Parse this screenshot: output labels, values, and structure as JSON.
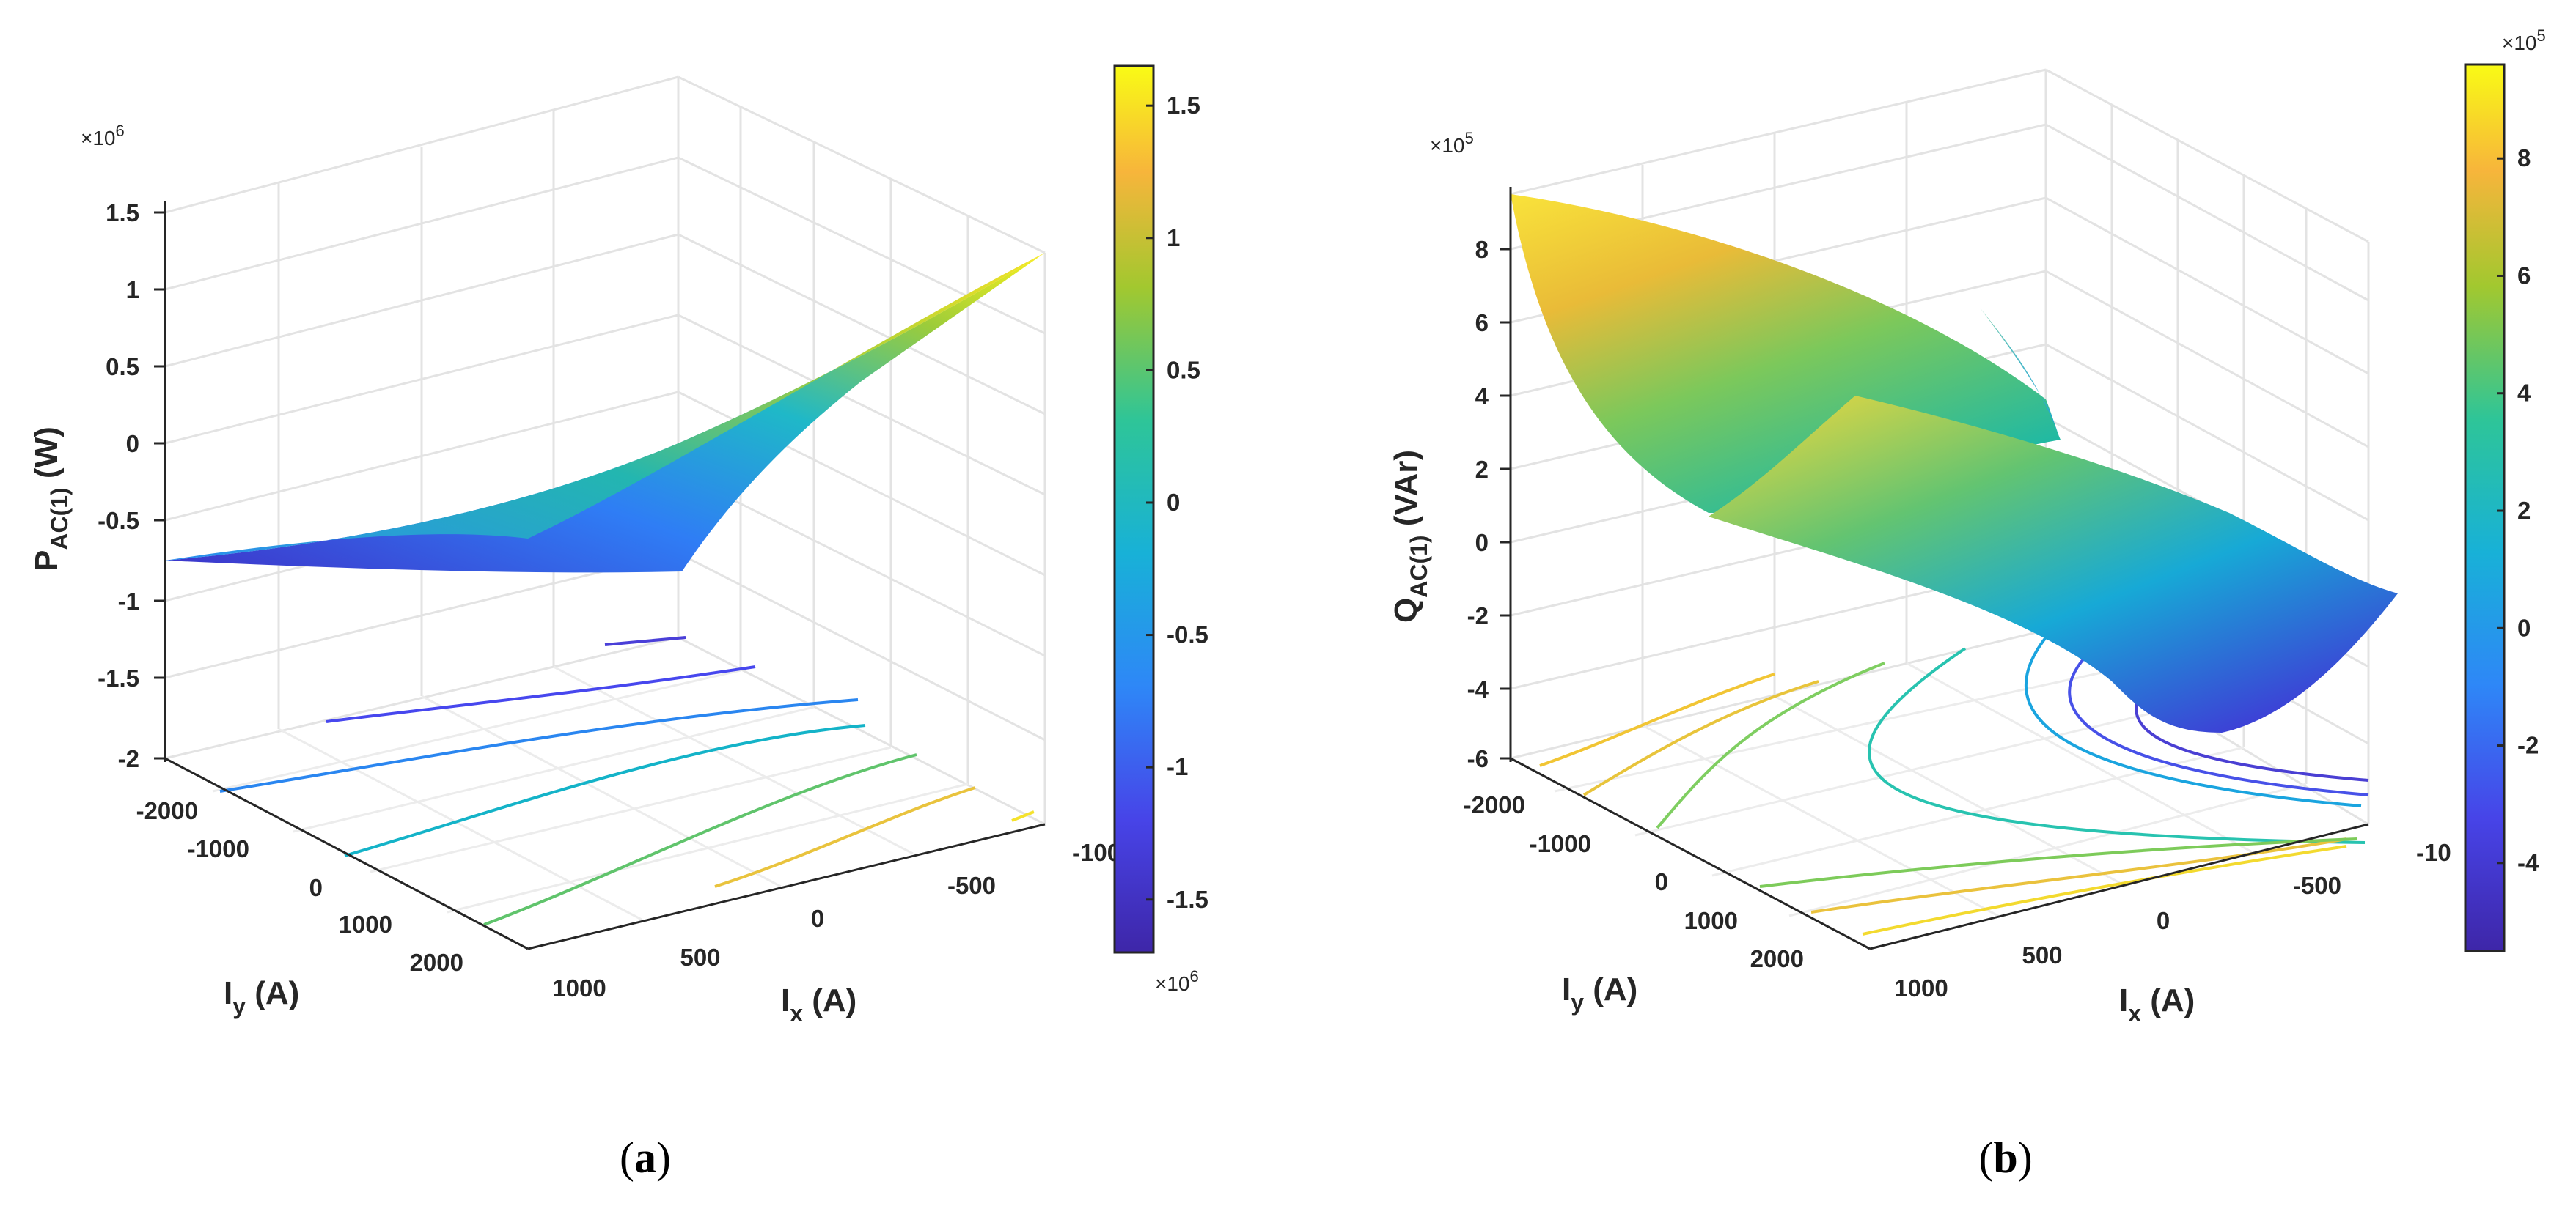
{
  "chart_data": [
    {
      "id": "a",
      "type": "surface3d",
      "caption_letter": "a",
      "zlabel_main": "P",
      "zlabel_sub": "AC(1)",
      "zlabel_unit": " (W)",
      "xlabel_main": "I",
      "xlabel_sub": "x",
      "xlabel_unit": " (A)",
      "ylabel_main": "I",
      "ylabel_sub": "y",
      "ylabel_unit": " (A)",
      "z_exponent_base": "×10",
      "z_exponent_power": "6",
      "z_ticks": [
        "1.5",
        "1",
        "0.5",
        "0",
        "-0.5",
        "-1",
        "-1.5",
        "-2"
      ],
      "z_tick_values": [
        1.5,
        1,
        0.5,
        0,
        -0.5,
        -1,
        -1.5,
        -2
      ],
      "x_ticks": [
        "1000",
        "500",
        "0",
        "-500",
        "-100"
      ],
      "y_ticks": [
        "-2000",
        "-1000",
        "0",
        "1000",
        "2000"
      ],
      "colorbar": {
        "ticks": [
          "1.5",
          "1",
          "0.5",
          "0",
          "-0.5",
          "-1",
          "-1.5"
        ],
        "values": [
          1.5,
          1,
          0.5,
          0,
          -0.5,
          -1,
          -1.5
        ],
        "range": [
          -1.7,
          1.65
        ],
        "exponent_base": "×10",
        "exponent_power": "6"
      },
      "surface_corner_values": {
        "front_left": -0.75,
        "front_right": -0.8,
        "back_right": 1.55,
        "crease_mid": -0.6
      },
      "contour_levels": [
        -1.5,
        -1,
        -0.5,
        0,
        0.5,
        1,
        1.5
      ]
    },
    {
      "id": "b",
      "type": "surface3d",
      "caption_letter": "b",
      "zlabel_main": "Q",
      "zlabel_sub": "AC(1)",
      "zlabel_unit": " (VAr)",
      "xlabel_main": "I",
      "xlabel_sub": "x",
      "xlabel_unit": " (A)",
      "ylabel_main": "I",
      "ylabel_sub": "y",
      "ylabel_unit": " (A)",
      "z_exponent_base": "×10",
      "z_exponent_power": "5",
      "z_ticks": [
        "8",
        "6",
        "4",
        "2",
        "0",
        "-2",
        "-4",
        "-6"
      ],
      "z_tick_values": [
        8,
        6,
        4,
        2,
        0,
        -2,
        -4,
        -6
      ],
      "x_ticks": [
        "1000",
        "500",
        "0",
        "-500",
        "-10"
      ],
      "y_ticks": [
        "-2000",
        "-1000",
        "0",
        "1000",
        "2000"
      ],
      "colorbar": {
        "ticks": [
          "8",
          "6",
          "4",
          "2",
          "0",
          "-2",
          "-4"
        ],
        "values": [
          8,
          6,
          4,
          2,
          0,
          -2,
          -4
        ],
        "range": [
          -5.5,
          9.6
        ],
        "exponent_base": "×10",
        "exponent_power": "5"
      },
      "surface_corner_values": {
        "left_peak": 9.5,
        "trough": 0.5,
        "ridge": 4,
        "right_low": -5
      },
      "contour_levels": [
        -4,
        -2,
        0,
        2,
        4,
        6,
        8
      ]
    }
  ]
}
